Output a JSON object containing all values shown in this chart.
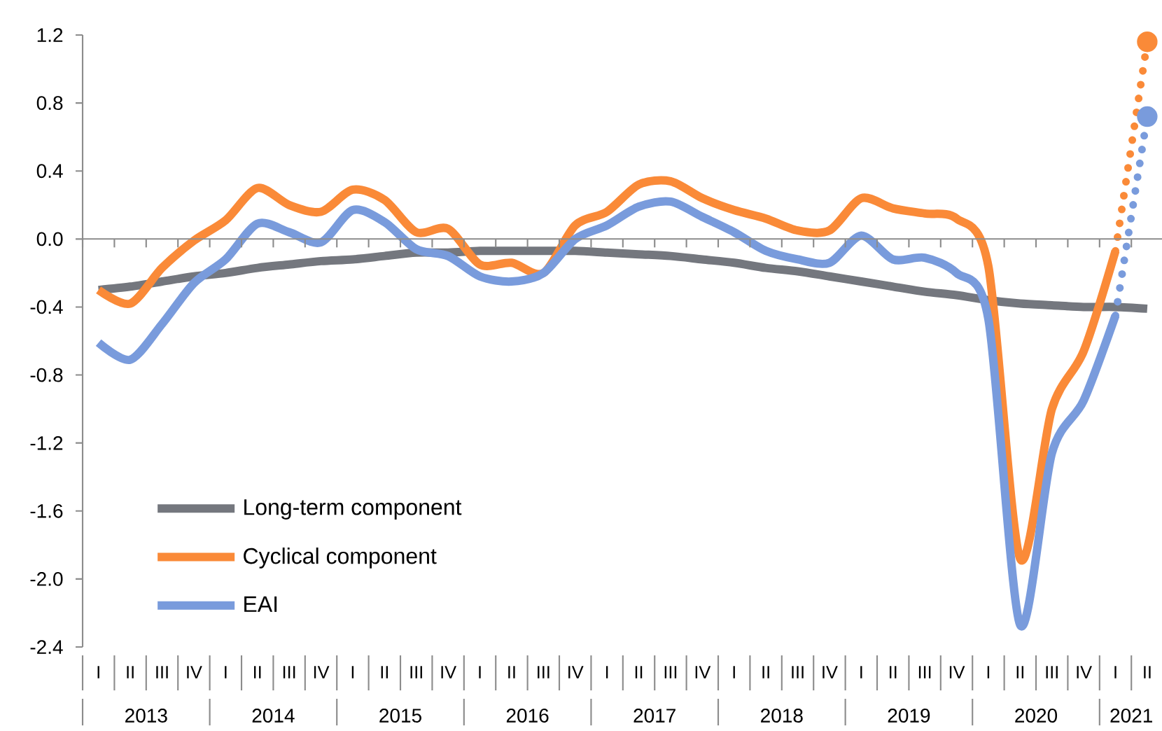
{
  "chart_data": {
    "type": "line",
    "ylim": [
      -2.4,
      1.2
    ],
    "yticks": [
      -2.4,
      {
        "value": -2.0,
        "label": "-2.0"
      },
      -1.6,
      -1.2,
      -0.8,
      -0.4,
      {
        "value": 0,
        "label": "0.0"
      },
      0.4,
      0.8,
      1.2
    ],
    "categories": [
      "I",
      "II",
      "III",
      "IV",
      "I",
      "II",
      "III",
      "IV",
      "I",
      "II",
      "III",
      "IV",
      "I",
      "II",
      "III",
      "IV",
      "I",
      "II",
      "III",
      "IV",
      "I",
      "II",
      "III",
      "IV",
      "I",
      "II",
      "III",
      "IV",
      "I",
      "II",
      "III",
      "IV",
      "I",
      "II"
    ],
    "annotations": [
      "2013",
      "2014",
      "2015",
      "2016",
      "2017",
      "2018",
      "2019",
      "2020",
      "2021"
    ],
    "legend": "bottom left",
    "series": [
      {
        "name": "Long-term component",
        "color": "#74777e",
        "values": [
          -0.3,
          -0.28,
          -0.25,
          -0.22,
          -0.2,
          -0.17,
          -0.15,
          -0.13,
          -0.12,
          -0.1,
          -0.08,
          -0.08,
          -0.07,
          -0.07,
          -0.07,
          -0.07,
          -0.08,
          -0.09,
          -0.1,
          -0.12,
          -0.14,
          -0.17,
          -0.19,
          -0.22,
          -0.25,
          -0.28,
          -0.31,
          -0.33,
          -0.36,
          -0.38,
          -0.39,
          -0.4,
          -0.4,
          -0.41
        ]
      },
      {
        "name": "Cyclical component",
        "color": "#fa8a38",
        "values": [
          -0.3,
          -0.38,
          -0.17,
          -0.01,
          0.11,
          0.3,
          0.2,
          0.16,
          0.29,
          0.23,
          0.04,
          0.06,
          -0.15,
          -0.14,
          -0.2,
          0.08,
          0.16,
          0.32,
          0.34,
          0.24,
          0.17,
          0.12,
          0.05,
          0.05,
          0.24,
          0.18,
          0.15,
          0.12,
          -0.16,
          -1.88,
          -1.0,
          -0.66,
          -0.07,
          null
        ]
      },
      {
        "name": "EAI",
        "color": "#799bdc",
        "values": [
          -0.61,
          -0.71,
          -0.5,
          -0.26,
          -0.12,
          0.09,
          0.04,
          -0.02,
          0.17,
          0.1,
          -0.06,
          -0.1,
          -0.22,
          -0.25,
          -0.2,
          0.0,
          0.08,
          0.19,
          0.22,
          0.13,
          0.04,
          -0.07,
          -0.12,
          -0.14,
          0.02,
          -0.12,
          -0.11,
          -0.2,
          -0.47,
          -2.27,
          -1.26,
          -0.95,
          -0.45,
          null
        ]
      },
      {
        "color": "#fa8a38",
        "line_style": "dotted",
        "marker": "circle",
        "values": [
          null,
          null,
          null,
          null,
          null,
          null,
          null,
          null,
          null,
          null,
          null,
          null,
          null,
          null,
          null,
          null,
          null,
          null,
          null,
          null,
          null,
          null,
          null,
          null,
          null,
          null,
          null,
          null,
          null,
          null,
          null,
          null,
          -0.07,
          1.16
        ]
      },
      {
        "color": "#799bdc",
        "line_style": "dotted",
        "marker": "circle",
        "values": [
          null,
          null,
          null,
          null,
          null,
          null,
          null,
          null,
          null,
          null,
          null,
          null,
          null,
          null,
          null,
          null,
          null,
          null,
          null,
          null,
          null,
          null,
          null,
          null,
          null,
          null,
          null,
          null,
          null,
          null,
          null,
          null,
          -0.45,
          0.72
        ]
      }
    ]
  }
}
